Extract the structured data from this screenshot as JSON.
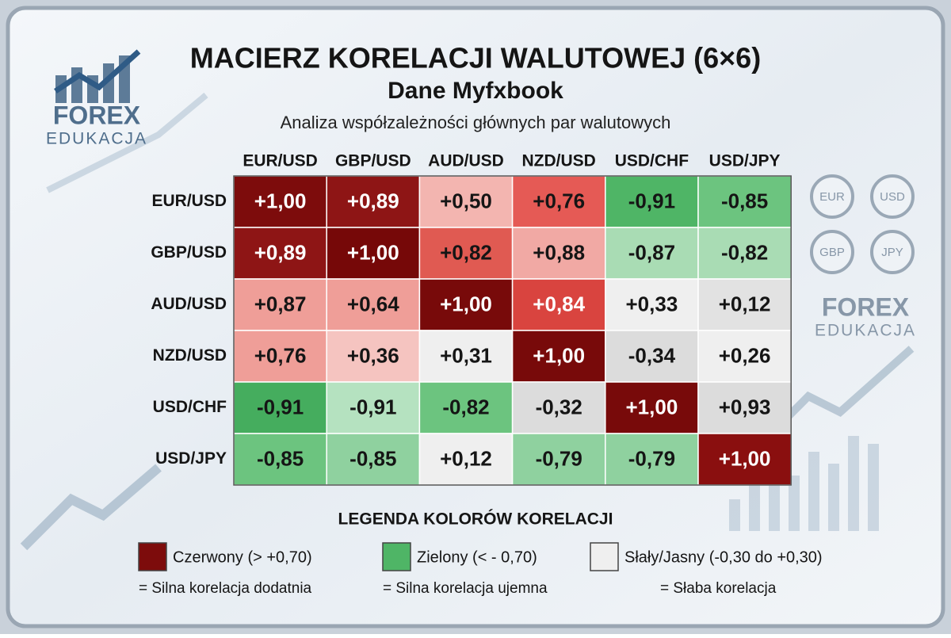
{
  "chart_data": {
    "type": "heatmap",
    "title": "MACIERZ KORELACJI WALUTOWEJ (6×6)",
    "subtitle": "Dane Myfxbook",
    "annotation": "Analiza współzależności głównych par walutowych",
    "x_categories": [
      "EUR/USD",
      "GBP/USD",
      "AUD/USD",
      "NZD/USD",
      "USD/CHF",
      "USD/JPY"
    ],
    "y_categories": [
      "EUR/USD",
      "GBP/USD",
      "AUD/USD",
      "NZD/USD",
      "USD/CHF",
      "USD/JPY"
    ],
    "values": [
      [
        1.0,
        0.89,
        0.5,
        0.76,
        -0.91,
        -0.85
      ],
      [
        0.89,
        1.0,
        0.82,
        0.88,
        -0.87,
        -0.82
      ],
      [
        0.87,
        0.64,
        1.0,
        0.84,
        0.33,
        0.12
      ],
      [
        0.76,
        0.36,
        0.31,
        1.0,
        -0.34,
        0.26
      ],
      [
        -0.91,
        -0.91,
        -0.82,
        -0.32,
        1.0,
        0.93
      ],
      [
        -0.85,
        -0.85,
        0.12,
        -0.79,
        -0.79,
        1.0
      ]
    ],
    "value_labels": [
      [
        "+1,00",
        "+0,89",
        "+0,50",
        "+0,76",
        "-0,91",
        "-0,85"
      ],
      [
        "+0,89",
        "+1,00",
        "+0,82",
        "+0,88",
        "-0,87",
        "-0,82"
      ],
      [
        "+0,87",
        "+0,64",
        "+1,00",
        "+0,84",
        "+0,33",
        "+0,12"
      ],
      [
        "+0,76",
        "+0,36",
        "+0,31",
        "+1,00",
        "-0,34",
        "+0,26"
      ],
      [
        "-0,91",
        "-0,91",
        "-0,82",
        "-0,32",
        "+1,00",
        "+0,93"
      ],
      [
        "-0,85",
        "-0,85",
        "+0,12",
        "-0,79",
        "-0,79",
        "+1,00"
      ]
    ],
    "colors": [
      [
        "#7d0c0c",
        "#8e1515",
        "#f3b5b0",
        "#e55a55",
        "#4fb566",
        "#6cc47f"
      ],
      [
        "#8e1515",
        "#760808",
        "#e05a52",
        "#f1a9a4",
        "#a9dcb4",
        "#a9dcb4"
      ],
      [
        "#ef9e98",
        "#ef9e98",
        "#780a0a",
        "#d9443f",
        "#efefef",
        "#e2e2e2"
      ],
      [
        "#ef9e98",
        "#f5c4c0",
        "#efefef",
        "#780a0a",
        "#dcdcdc",
        "#efefef"
      ],
      [
        "#45ad5e",
        "#b5e2c0",
        "#6cc47f",
        "#dcdcdc",
        "#780a0a",
        "#dcdcdc"
      ],
      [
        "#6cc47f",
        "#8fd19f",
        "#efefef",
        "#8fd19f",
        "#8fd19f",
        "#8a0f0f"
      ]
    ],
    "legend": {
      "title": "LEGENDA KOLORÓW KORELACJI",
      "items": [
        {
          "label": "Czerwony (> +0,70)",
          "note": "= Silna korelacja dodatnia",
          "color": "#7d0c0c"
        },
        {
          "label": "Zielony (< - 0,70)",
          "note": "= Silna korelacja ujemna",
          "color": "#4fb566"
        },
        {
          "label": "Słały/Jasny (-0,30 do +0,30)",
          "note": "= Słaba korelacja",
          "color": "#efefef"
        }
      ]
    },
    "branding": {
      "logo_top": "FOREX",
      "logo_bottom": "EDUKACJA",
      "currencies": [
        "EUR",
        "USD",
        "GBP",
        "JPY"
      ]
    }
  }
}
